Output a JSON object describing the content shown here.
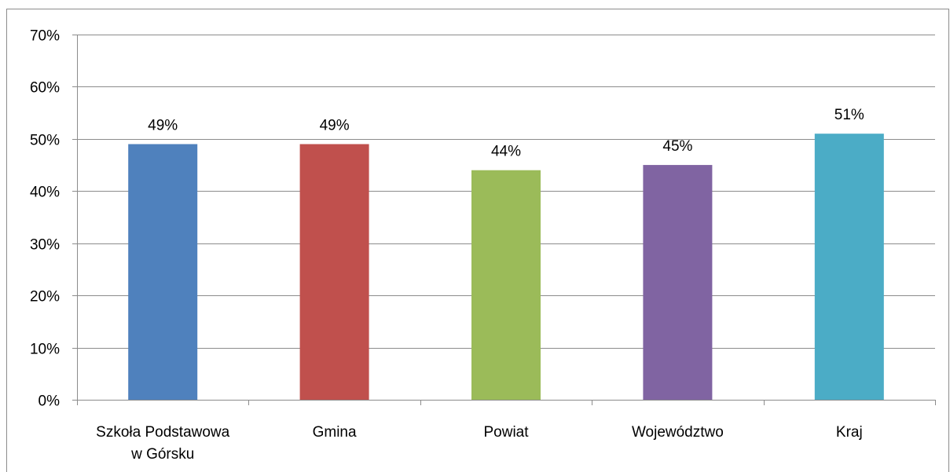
{
  "chart_data": {
    "type": "bar",
    "categories": [
      [
        "Szkoła Podstawowa",
        "w Górsku"
      ],
      [
        "Gmina"
      ],
      [
        "Powiat"
      ],
      [
        "Województwo"
      ],
      [
        "Kraj"
      ]
    ],
    "values": [
      49,
      49,
      44,
      45,
      51
    ],
    "data_labels": [
      "49%",
      "49%",
      "44%",
      "45%",
      "51%"
    ],
    "colors": [
      "#4f81bd",
      "#c0504d",
      "#9bbb59",
      "#8064a2",
      "#4bacc6"
    ],
    "ylim": [
      0,
      70
    ],
    "yticks": [
      0,
      10,
      20,
      30,
      40,
      50,
      60,
      70
    ],
    "ytick_labels": [
      "0%",
      "10%",
      "20%",
      "30%",
      "40%",
      "50%",
      "60%",
      "70%"
    ],
    "grid": true,
    "legend": "none",
    "title": "",
    "xlabel": "",
    "ylabel": ""
  }
}
